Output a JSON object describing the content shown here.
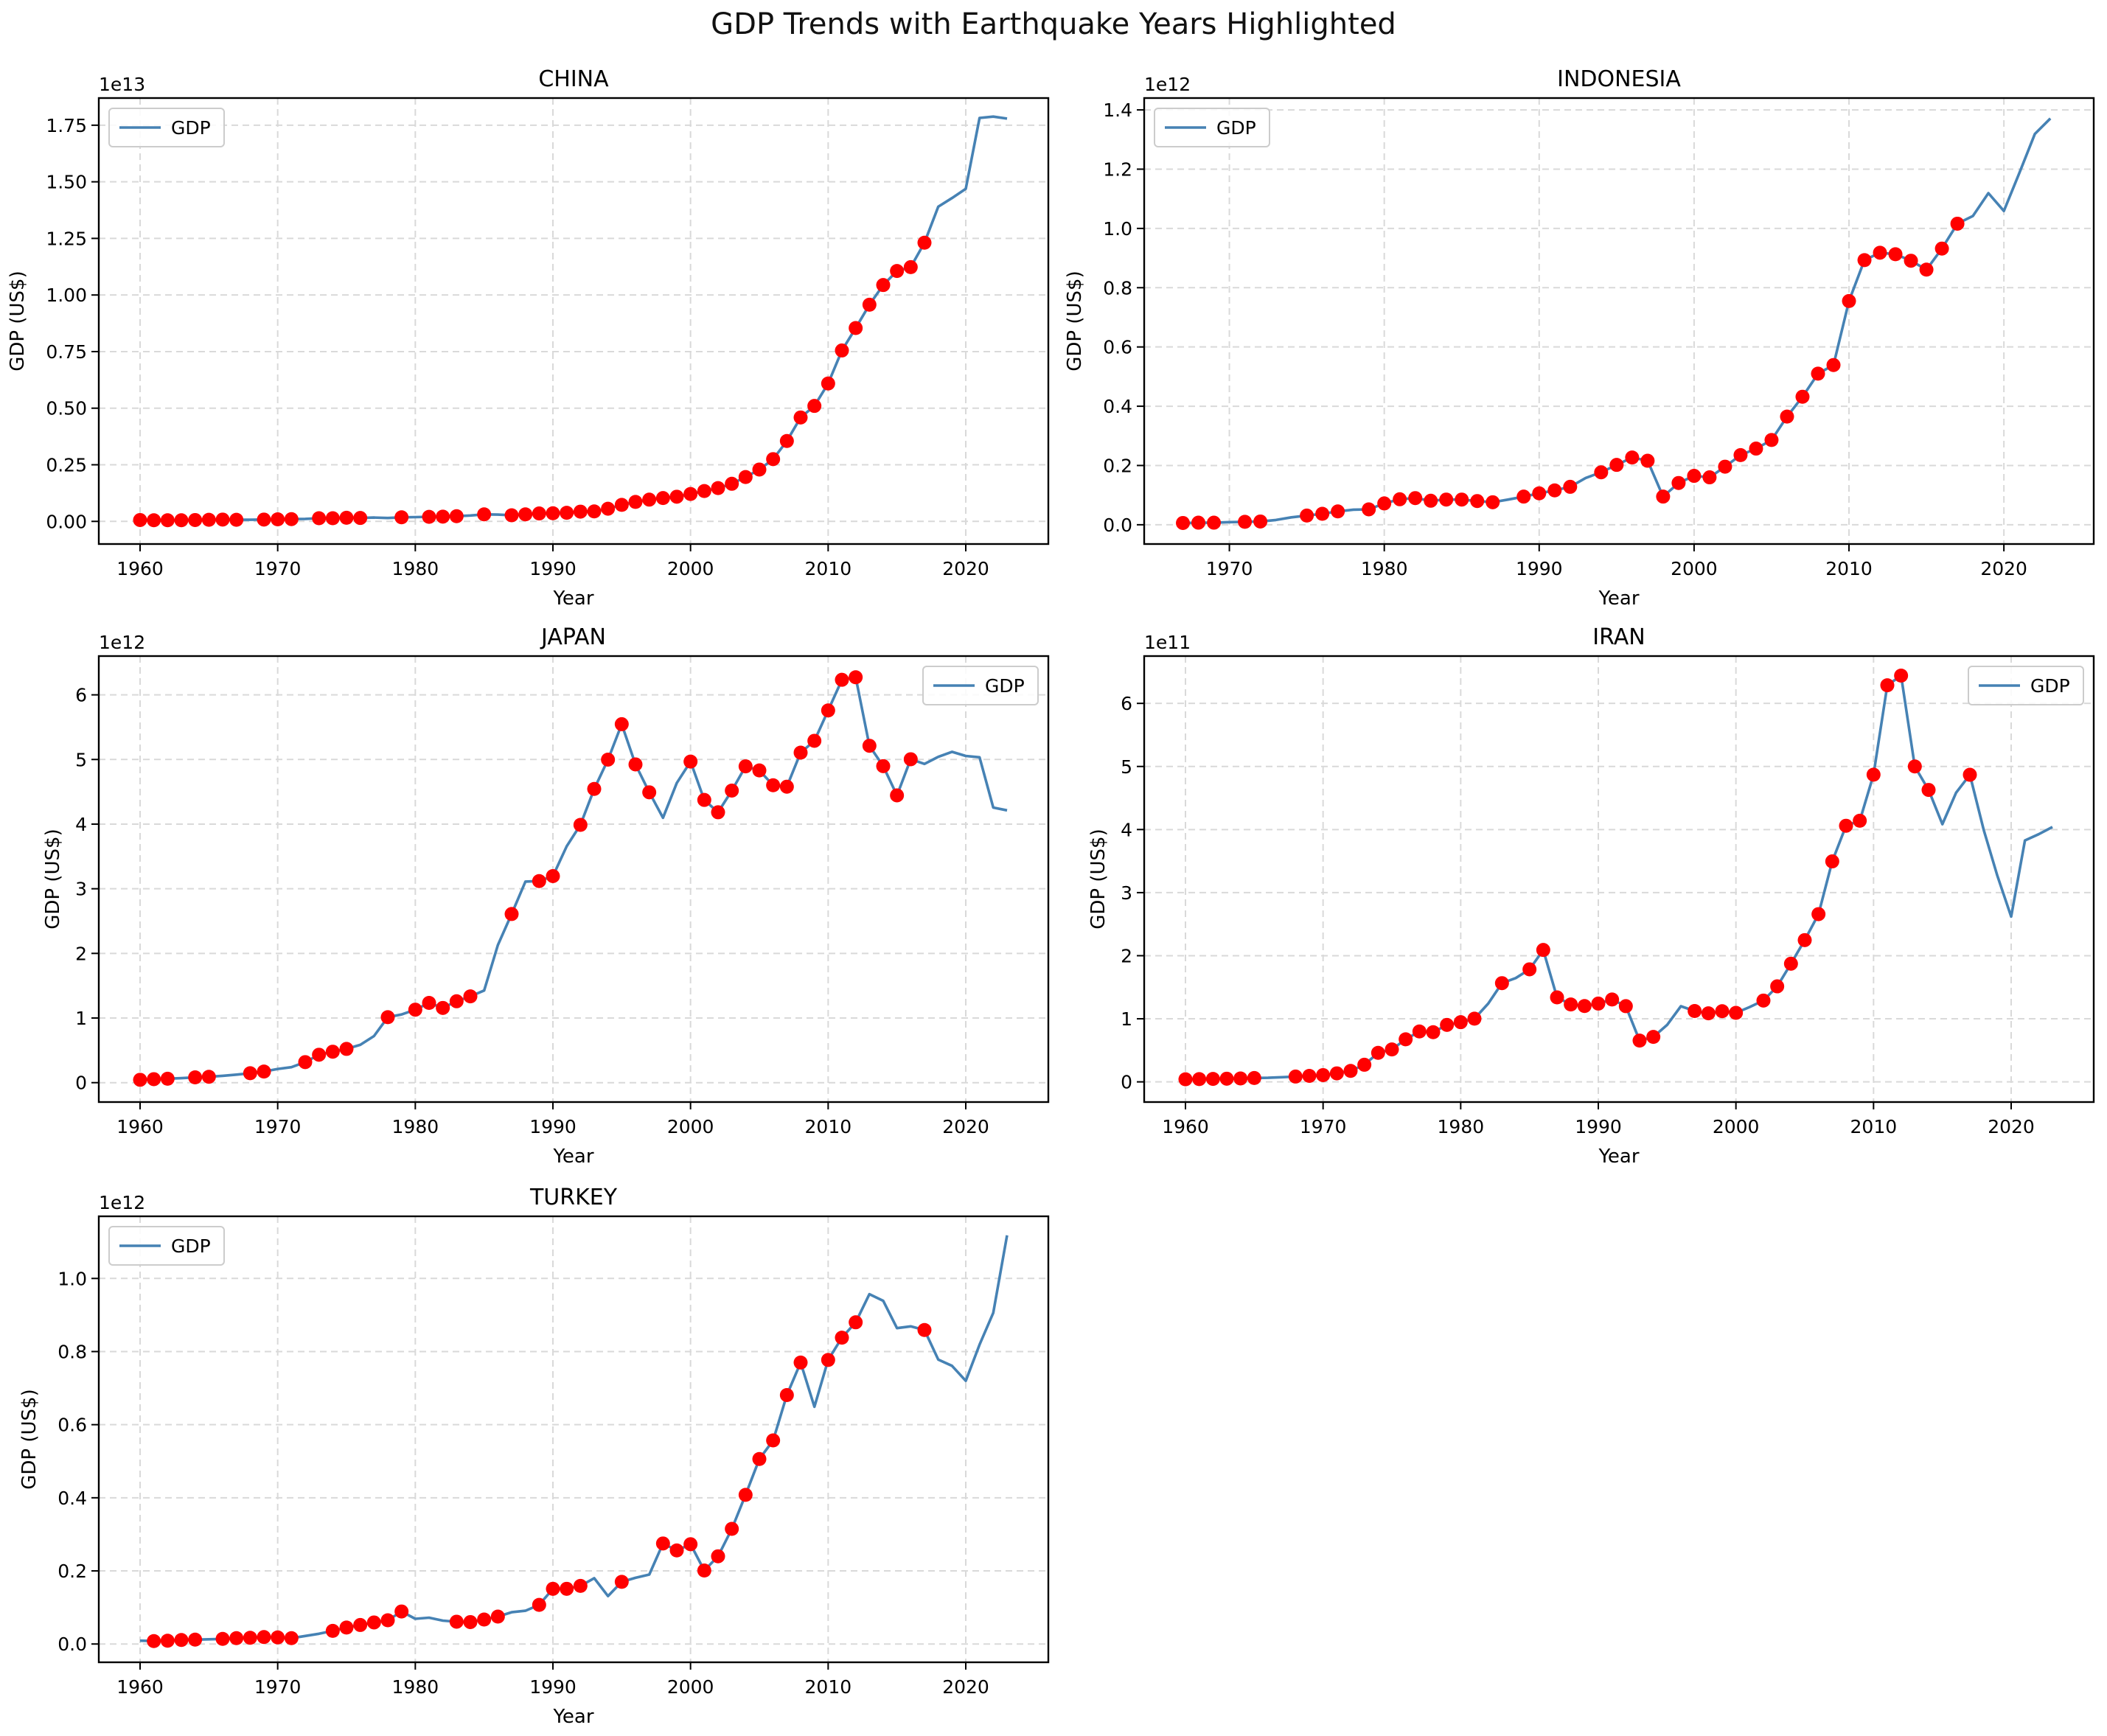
{
  "figure": {
    "title": "GDP Trends with Earthquake Years Highlighted",
    "line_color": "#4682b4",
    "marker_color": "#ff0000",
    "grid_color": "#d9d9d9",
    "legend_label": "GDP"
  },
  "chart_data": [
    {
      "type": "line",
      "title": "CHINA",
      "xlabel": "Year",
      "ylabel": "GDP (US$)",
      "offset_label": "1e13",
      "xlim": [
        1957,
        2026
      ],
      "ylim": [
        -0.1,
        1.87
      ],
      "xticks": [
        1960,
        1970,
        1980,
        1990,
        2000,
        2010,
        2020
      ],
      "yticks": [
        0.0,
        0.25,
        0.5,
        0.75,
        1.0,
        1.25,
        1.5,
        1.75
      ],
      "ytick_labels": [
        "0.00",
        "0.25",
        "0.50",
        "0.75",
        "1.00",
        "1.25",
        "1.50",
        "1.75"
      ],
      "legend": "upper left",
      "grid": true,
      "series": [
        {
          "name": "GDP",
          "x": [
            1960,
            1961,
            1962,
            1963,
            1964,
            1965,
            1966,
            1967,
            1968,
            1969,
            1970,
            1971,
            1972,
            1973,
            1974,
            1975,
            1976,
            1977,
            1978,
            1979,
            1980,
            1981,
            1982,
            1983,
            1984,
            1985,
            1986,
            1987,
            1988,
            1989,
            1990,
            1991,
            1992,
            1993,
            1994,
            1995,
            1996,
            1997,
            1998,
            1999,
            2000,
            2001,
            2002,
            2003,
            2004,
            2005,
            2006,
            2007,
            2008,
            2009,
            2010,
            2011,
            2012,
            2013,
            2014,
            2015,
            2016,
            2017,
            2018,
            2019,
            2020,
            2021,
            2022,
            2023
          ],
          "y": [
            0.006,
            0.005,
            0.005,
            0.005,
            0.006,
            0.007,
            0.008,
            0.007,
            0.007,
            0.008,
            0.009,
            0.01,
            0.011,
            0.014,
            0.014,
            0.016,
            0.015,
            0.017,
            0.015,
            0.018,
            0.019,
            0.02,
            0.021,
            0.023,
            0.026,
            0.031,
            0.03,
            0.027,
            0.031,
            0.035,
            0.036,
            0.038,
            0.043,
            0.044,
            0.056,
            0.073,
            0.086,
            0.096,
            0.103,
            0.109,
            0.121,
            0.134,
            0.147,
            0.166,
            0.196,
            0.229,
            0.275,
            0.355,
            0.459,
            0.51,
            0.609,
            0.755,
            0.854,
            0.957,
            1.044,
            1.106,
            1.123,
            1.231,
            1.39,
            1.428,
            1.469,
            1.782,
            1.788,
            1.779
          ]
        }
      ],
      "earthquake_years": [
        1960,
        1961,
        1962,
        1963,
        1964,
        1965,
        1966,
        1967,
        1969,
        1970,
        1971,
        1973,
        1974,
        1975,
        1976,
        1979,
        1981,
        1982,
        1983,
        1985,
        1987,
        1988,
        1989,
        1990,
        1991,
        1992,
        1993,
        1994,
        1995,
        1996,
        1997,
        1998,
        1999,
        2000,
        2001,
        2002,
        2003,
        2004,
        2005,
        2006,
        2007,
        2008,
        2009,
        2010,
        2011,
        2012,
        2013,
        2014,
        2015,
        2016,
        2017
      ]
    },
    {
      "type": "line",
      "title": "INDONESIA",
      "xlabel": "Year",
      "ylabel": "GDP (US$)",
      "offset_label": "1e12",
      "xlim": [
        1964.5,
        2025.8
      ],
      "ylim": [
        -0.065,
        1.44
      ],
      "xticks": [
        1970,
        1980,
        1990,
        2000,
        2010,
        2020
      ],
      "yticks": [
        0.0,
        0.2,
        0.4,
        0.6,
        0.8,
        1.0,
        1.2,
        1.4
      ],
      "ytick_labels": [
        "0.0",
        "0.2",
        "0.4",
        "0.6",
        "0.8",
        "1.0",
        "1.2",
        "1.4"
      ],
      "legend": "upper left",
      "grid": true,
      "series": [
        {
          "name": "GDP",
          "x": [
            1967,
            1968,
            1969,
            1970,
            1971,
            1972,
            1973,
            1974,
            1975,
            1976,
            1977,
            1978,
            1979,
            1980,
            1981,
            1982,
            1983,
            1984,
            1985,
            1986,
            1987,
            1988,
            1989,
            1990,
            1991,
            1992,
            1993,
            1994,
            1995,
            1996,
            1997,
            1998,
            1999,
            2000,
            2001,
            2002,
            2003,
            2004,
            2005,
            2006,
            2007,
            2008,
            2009,
            2010,
            2011,
            2012,
            2013,
            2014,
            2015,
            2016,
            2017,
            2018,
            2019,
            2020,
            2021,
            2022,
            2023
          ],
          "y": [
            0.006,
            0.007,
            0.007,
            0.009,
            0.01,
            0.011,
            0.016,
            0.025,
            0.031,
            0.037,
            0.045,
            0.051,
            0.052,
            0.072,
            0.086,
            0.09,
            0.081,
            0.085,
            0.085,
            0.08,
            0.076,
            0.085,
            0.095,
            0.106,
            0.116,
            0.128,
            0.158,
            0.177,
            0.202,
            0.227,
            0.216,
            0.095,
            0.141,
            0.165,
            0.16,
            0.196,
            0.235,
            0.257,
            0.286,
            0.365,
            0.432,
            0.51,
            0.539,
            0.755,
            0.893,
            0.918,
            0.913,
            0.891,
            0.861,
            0.932,
            1.016,
            1.042,
            1.119,
            1.059,
            1.187,
            1.319,
            1.371
          ]
        }
      ],
      "earthquake_years": [
        1967,
        1968,
        1969,
        1971,
        1972,
        1975,
        1976,
        1977,
        1979,
        1980,
        1981,
        1982,
        1983,
        1984,
        1985,
        1986,
        1987,
        1989,
        1990,
        1991,
        1992,
        1994,
        1995,
        1996,
        1997,
        1998,
        1999,
        2000,
        2001,
        2002,
        2003,
        2004,
        2005,
        2006,
        2007,
        2008,
        2009,
        2010,
        2011,
        2012,
        2013,
        2014,
        2015,
        2016,
        2017
      ]
    },
    {
      "type": "line",
      "title": "JAPAN",
      "xlabel": "Year",
      "ylabel": "GDP (US$)",
      "offset_label": "1e12",
      "xlim": [
        1957,
        2026
      ],
      "ylim": [
        -0.3,
        6.6
      ],
      "xticks": [
        1960,
        1970,
        1980,
        1990,
        2000,
        2010,
        2020
      ],
      "yticks": [
        0,
        1,
        2,
        3,
        4,
        5,
        6
      ],
      "ytick_labels": [
        "0",
        "1",
        "2",
        "3",
        "4",
        "5",
        "6"
      ],
      "legend": "upper right",
      "grid": true,
      "series": [
        {
          "name": "GDP",
          "x": [
            1960,
            1961,
            1962,
            1963,
            1964,
            1965,
            1966,
            1967,
            1968,
            1969,
            1970,
            1971,
            1972,
            1973,
            1974,
            1975,
            1976,
            1977,
            1978,
            1979,
            1980,
            1981,
            1982,
            1983,
            1984,
            1985,
            1986,
            1987,
            1988,
            1989,
            1990,
            1991,
            1992,
            1993,
            1994,
            1995,
            1996,
            1997,
            1998,
            1999,
            2000,
            2001,
            2002,
            2003,
            2004,
            2005,
            2006,
            2007,
            2008,
            2009,
            2010,
            2011,
            2012,
            2013,
            2014,
            2015,
            2016,
            2017,
            2018,
            2019,
            2020,
            2021,
            2022,
            2023
          ],
          "y": [
            0.044,
            0.054,
            0.061,
            0.07,
            0.082,
            0.091,
            0.106,
            0.124,
            0.146,
            0.172,
            0.212,
            0.24,
            0.318,
            0.432,
            0.479,
            0.522,
            0.585,
            0.721,
            1.013,
            1.055,
            1.129,
            1.234,
            1.156,
            1.259,
            1.335,
            1.426,
            2.128,
            2.609,
            3.111,
            3.119,
            3.196,
            3.657,
            3.988,
            4.544,
            4.998,
            5.546,
            4.924,
            4.492,
            4.098,
            4.636,
            4.968,
            4.374,
            4.183,
            4.519,
            4.894,
            4.831,
            4.601,
            4.579,
            5.106,
            5.289,
            5.759,
            6.233,
            6.272,
            5.212,
            4.897,
            4.445,
            5.004,
            4.931,
            5.041,
            5.118,
            5.055,
            5.034,
            4.256,
            4.213
          ]
        }
      ],
      "earthquake_years": [
        1960,
        1961,
        1962,
        1964,
        1965,
        1968,
        1969,
        1972,
        1973,
        1974,
        1975,
        1978,
        1980,
        1981,
        1982,
        1983,
        1984,
        1987,
        1989,
        1990,
        1992,
        1993,
        1994,
        1995,
        1996,
        1997,
        2000,
        2001,
        2002,
        2003,
        2004,
        2005,
        2006,
        2007,
        2008,
        2009,
        2010,
        2011,
        2012,
        2013,
        2014,
        2015,
        2016
      ]
    },
    {
      "type": "line",
      "title": "IRAN",
      "xlabel": "Year",
      "ylabel": "GDP (US$)",
      "offset_label": "1e11",
      "xlim": [
        1957,
        2026
      ],
      "ylim": [
        -0.32,
        6.75
      ],
      "xticks": [
        1960,
        1970,
        1980,
        1990,
        2000,
        2010,
        2020
      ],
      "yticks": [
        0,
        1,
        2,
        3,
        4,
        5,
        6
      ],
      "ytick_labels": [
        "0",
        "1",
        "2",
        "3",
        "4",
        "5",
        "6"
      ],
      "legend": "upper right",
      "grid": true,
      "series": [
        {
          "name": "GDP",
          "x": [
            1960,
            1961,
            1962,
            1963,
            1964,
            1965,
            1966,
            1967,
            1968,
            1969,
            1970,
            1971,
            1972,
            1973,
            1974,
            1975,
            1976,
            1977,
            1978,
            1979,
            1980,
            1981,
            1982,
            1983,
            1984,
            1985,
            1986,
            1987,
            1988,
            1989,
            1990,
            1991,
            1992,
            1993,
            1994,
            1995,
            1996,
            1997,
            1998,
            1999,
            2000,
            2001,
            2002,
            2003,
            2004,
            2005,
            2006,
            2007,
            2008,
            2009,
            2010,
            2011,
            2012,
            2013,
            2014,
            2015,
            2016,
            2017,
            2018,
            2019,
            2020,
            2021,
            2022,
            2023
          ],
          "y": [
            0.041,
            0.044,
            0.047,
            0.05,
            0.054,
            0.061,
            0.065,
            0.074,
            0.084,
            0.095,
            0.107,
            0.135,
            0.174,
            0.271,
            0.46,
            0.514,
            0.675,
            0.799,
            0.787,
            0.903,
            0.946,
            1.002,
            1.241,
            1.565,
            1.646,
            1.784,
            2.091,
            1.339,
            1.227,
            1.202,
            1.241,
            1.306,
            1.2,
            0.654,
            0.713,
            0.902,
            1.199,
            1.123,
            1.087,
            1.12,
            1.094,
            1.186,
            1.289,
            1.514,
            1.873,
            2.247,
            2.659,
            3.495,
            4.06,
            4.14,
            4.87,
            6.287,
            6.44,
            5.0,
            4.628,
            4.085,
            4.584,
            4.868,
            3.997,
            3.267,
            2.62,
            3.827,
            3.925,
            4.04
          ]
        }
      ],
      "earthquake_years": [
        1960,
        1961,
        1962,
        1963,
        1964,
        1965,
        1968,
        1969,
        1970,
        1971,
        1972,
        1973,
        1974,
        1975,
        1976,
        1977,
        1978,
        1979,
        1980,
        1981,
        1983,
        1985,
        1986,
        1987,
        1988,
        1989,
        1990,
        1991,
        1992,
        1993,
        1994,
        1997,
        1998,
        1999,
        2000,
        2002,
        2003,
        2004,
        2005,
        2006,
        2007,
        2008,
        2009,
        2010,
        2011,
        2012,
        2013,
        2014,
        2017
      ]
    },
    {
      "type": "line",
      "title": "TURKEY",
      "xlabel": "Year",
      "ylabel": "GDP (US$)",
      "offset_label": "1e12",
      "xlim": [
        1957,
        2026
      ],
      "ylim": [
        -0.05,
        1.17
      ],
      "xticks": [
        1960,
        1970,
        1980,
        1990,
        2000,
        2010,
        2020
      ],
      "yticks": [
        0.0,
        0.2,
        0.4,
        0.6,
        0.8,
        1.0
      ],
      "ytick_labels": [
        "0.0",
        "0.2",
        "0.4",
        "0.6",
        "0.8",
        "1.0"
      ],
      "legend": "upper left",
      "grid": true,
      "series": [
        {
          "name": "GDP",
          "x": [
            1960,
            1961,
            1962,
            1963,
            1964,
            1965,
            1966,
            1967,
            1968,
            1969,
            1970,
            1971,
            1972,
            1973,
            1974,
            1975,
            1976,
            1977,
            1978,
            1979,
            1980,
            1981,
            1982,
            1983,
            1984,
            1985,
            1986,
            1987,
            1988,
            1989,
            1990,
            1991,
            1992,
            1993,
            1994,
            1995,
            1996,
            1997,
            1998,
            1999,
            2000,
            2001,
            2002,
            2003,
            2004,
            2005,
            2006,
            2007,
            2008,
            2009,
            2010,
            2011,
            2012,
            2013,
            2014,
            2015,
            2016,
            2017,
            2018,
            2019,
            2020,
            2021,
            2022,
            2023
          ],
          "y": [
            0.009,
            0.008,
            0.009,
            0.011,
            0.012,
            0.013,
            0.014,
            0.016,
            0.017,
            0.019,
            0.018,
            0.016,
            0.022,
            0.028,
            0.036,
            0.045,
            0.052,
            0.059,
            0.065,
            0.089,
            0.069,
            0.072,
            0.064,
            0.061,
            0.06,
            0.067,
            0.075,
            0.087,
            0.091,
            0.107,
            0.151,
            0.151,
            0.159,
            0.18,
            0.131,
            0.17,
            0.181,
            0.19,
            0.275,
            0.256,
            0.273,
            0.201,
            0.24,
            0.315,
            0.408,
            0.506,
            0.557,
            0.681,
            0.77,
            0.649,
            0.777,
            0.838,
            0.88,
            0.957,
            0.939,
            0.864,
            0.869,
            0.859,
            0.778,
            0.761,
            0.72,
            0.819,
            0.906,
            1.118
          ]
        }
      ],
      "earthquake_years": [
        1961,
        1962,
        1963,
        1964,
        1966,
        1967,
        1968,
        1969,
        1970,
        1971,
        1974,
        1975,
        1976,
        1977,
        1978,
        1979,
        1983,
        1984,
        1985,
        1986,
        1989,
        1990,
        1991,
        1992,
        1995,
        1998,
        1999,
        2000,
        2001,
        2002,
        2003,
        2004,
        2005,
        2006,
        2007,
        2008,
        2010,
        2011,
        2012,
        2017
      ]
    }
  ]
}
